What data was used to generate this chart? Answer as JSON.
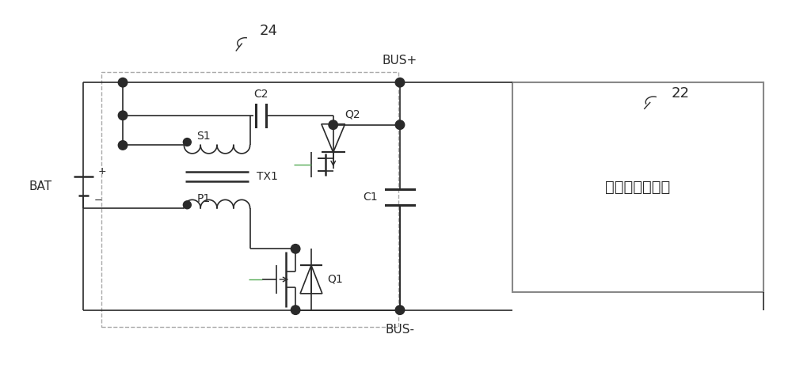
{
  "bg_color": "#ffffff",
  "line_color": "#2a2a2a",
  "dashed_color": "#aaaaaa",
  "gray_color": "#888888",
  "green_color": "#55aa55",
  "label_24": "24",
  "label_22": "22",
  "label_BAT": "BAT",
  "label_BUSp": "BUS+",
  "label_BUSm": "BUS-",
  "label_C1": "C1",
  "label_C2": "C2",
  "label_TX1": "TX1",
  "label_S1": "S1",
  "label_P1": "P1",
  "label_Q1": "Q1",
  "label_Q2": "Q2",
  "label_box": "三桥臂拓扑电路"
}
